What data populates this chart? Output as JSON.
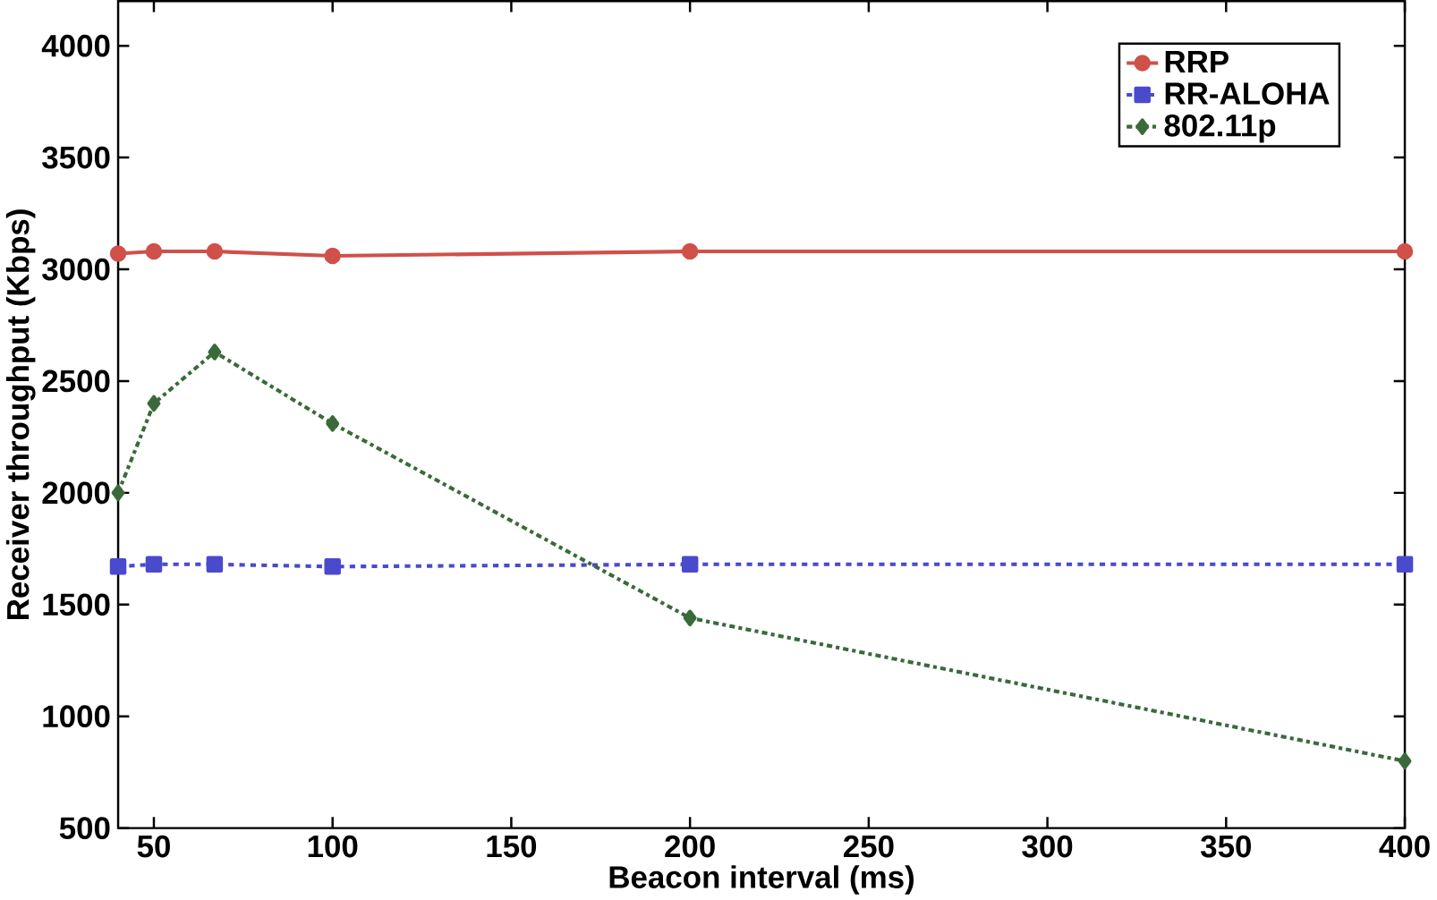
{
  "chart_data": {
    "type": "line",
    "xlabel": "Beacon interval (ms)",
    "ylabel": "Receiver throughput (Kbps)",
    "x": [
      40,
      50,
      67,
      100,
      200,
      400
    ],
    "series": [
      {
        "name": "RRP",
        "color": "#d0504a",
        "marker": "circle",
        "line_style": "solid",
        "values": [
          3070,
          3080,
          3080,
          3060,
          3080,
          3080
        ]
      },
      {
        "name": "RR-ALOHA",
        "color": "#4a4acc",
        "marker": "square",
        "line_style": "dashed",
        "values": [
          1670,
          1680,
          1680,
          1670,
          1680,
          1680
        ]
      },
      {
        "name": "802.11p",
        "color": "#3a6a3a",
        "marker": "diamond",
        "line_style": "dashdot",
        "values": [
          2000,
          2400,
          2630,
          2310,
          1440,
          800
        ]
      }
    ],
    "xlim": [
      40,
      400
    ],
    "xticks": [
      50,
      100,
      150,
      200,
      250,
      300,
      350,
      400
    ],
    "ylim": [
      500,
      4200
    ],
    "yticks": [
      500,
      1000,
      1500,
      2000,
      2500,
      3000,
      3500,
      4000
    ],
    "grid": false,
    "legend": "top right"
  }
}
